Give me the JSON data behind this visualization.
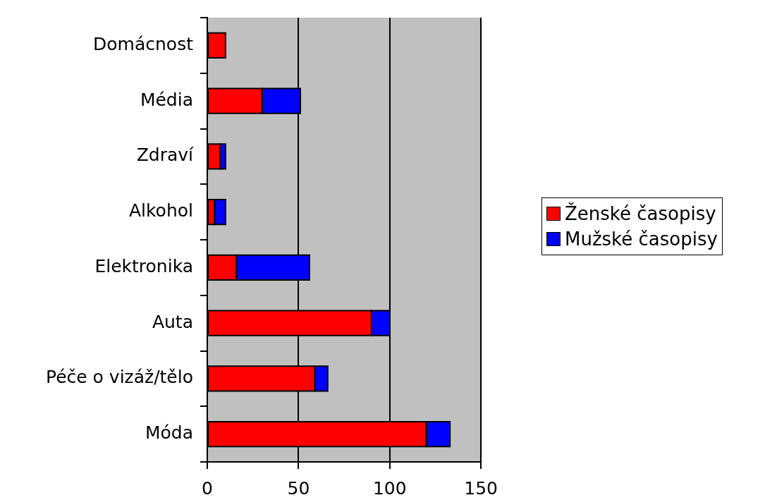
{
  "chart_data": {
    "type": "bar",
    "orientation": "horizontal",
    "stacked": true,
    "categories": [
      "Domácnost",
      "Média",
      "Zdraví",
      "Alkohol",
      "Elektronika",
      "Auta",
      "Péče o vizáž/tělo",
      "Móda"
    ],
    "series": [
      {
        "name": "Ženské časopisy",
        "color": "#ff0000",
        "values": [
          10,
          30,
          7,
          4,
          16,
          90,
          59,
          120
        ]
      },
      {
        "name": "Mužské časopisy",
        "color": "#0000ff",
        "values": [
          0,
          21,
          3,
          6,
          40,
          10,
          7,
          13
        ]
      }
    ],
    "xlim": [
      0,
      150
    ],
    "xticks": [
      0,
      50,
      100,
      150
    ],
    "grid": "x",
    "legend": "right"
  }
}
